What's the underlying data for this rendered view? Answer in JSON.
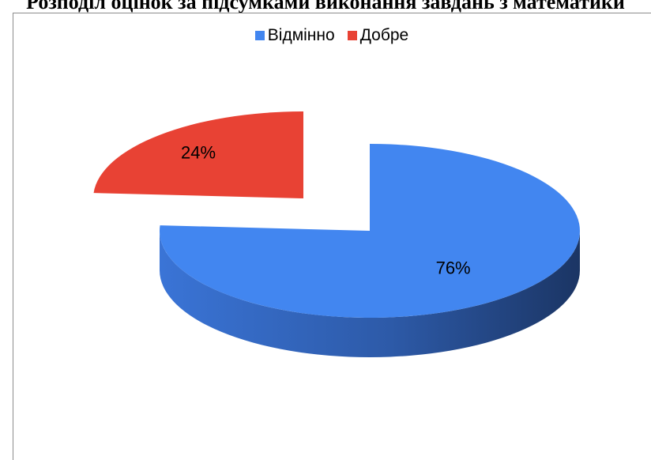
{
  "page": {
    "heading": "Розподіл оцінок за підсумками виконання завдань з математики"
  },
  "chart_data": {
    "type": "pie",
    "categories": [
      "Відмінно",
      "Добре"
    ],
    "values": [
      76,
      24
    ],
    "labels": [
      "76%",
      "24%"
    ],
    "colors": [
      "#4286f0",
      "#e84234"
    ],
    "legend_position": "top",
    "style": "3d-exploded"
  }
}
